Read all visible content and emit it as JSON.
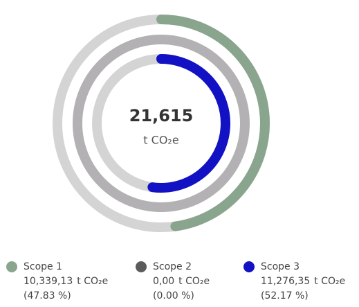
{
  "chart_data": {
    "type": "radial-bar",
    "total": "21,615",
    "unit": "t CO₂e",
    "ylim": [
      0,
      100
    ],
    "series": [
      {
        "name": "Scope 1",
        "color": "#8aa58e",
        "track_color": "#d4d4d4",
        "amount": "10,339,13",
        "values": [
          47.83
        ],
        "value_labels": [
          "(47.83 %)"
        ]
      },
      {
        "name": "Scope 2",
        "color": "#5b5b5b",
        "track_color": "#b3b1b3",
        "amount": "0,00",
        "values": [
          0.0
        ],
        "value_labels": [
          "(0.00 %)"
        ]
      },
      {
        "name": "Scope 3",
        "color": "#1212c4",
        "track_color": "#d4d4d4",
        "amount": "11,276,35",
        "values": [
          52.17
        ],
        "value_labels": [
          "(52.17 %)"
        ]
      }
    ]
  }
}
